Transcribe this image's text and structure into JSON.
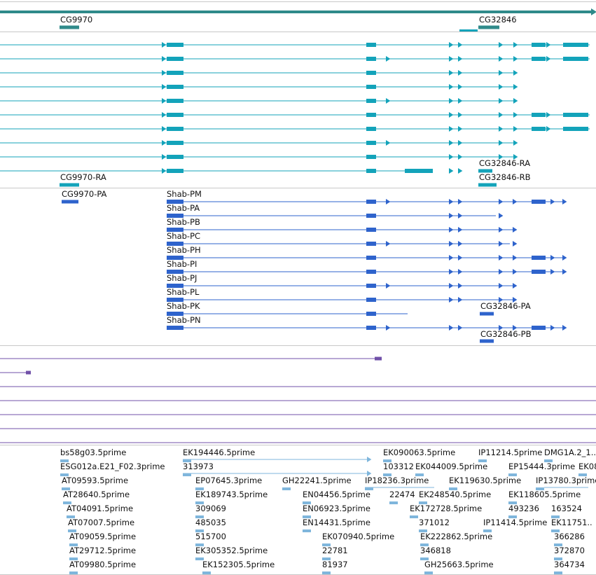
{
  "genes": {
    "labels": [
      "CG9970",
      "CG32846"
    ]
  },
  "mrna": {
    "labels": [
      "CG9970-RA",
      "CG32846-RA",
      "CG32846-RB"
    ]
  },
  "proteins": {
    "labels": [
      "CG9970-PA",
      "Shab-PM",
      "Shab-PA",
      "Shab-PB",
      "Shab-PC",
      "Shab-PH",
      "Shab-PI",
      "Shab-PJ",
      "Shab-PL",
      "Shab-PK",
      "CG32846-PA",
      "Shab-PN",
      "CG32846-PB"
    ]
  },
  "ests": {
    "labels": [
      "bs58g03.5prime",
      "EK194446.5prime",
      "EK090063.5prime",
      "IP11214.5prime",
      "DMG1A.2_1..",
      "ESG012a.E21_F02.3prime",
      "313973",
      "103312",
      "EK044009.5prime",
      "EP15444.3prime",
      "EK08",
      "AT09593.5prime",
      "EP07645.3prime",
      "GH22241.5prime",
      "IP18236.3prime",
      "EK119630.5prime",
      "IP13780.3prime",
      "AT28640.5prime",
      "EK189743.5prime",
      "EN04456.5prime",
      "22474",
      "EK248540.5prime",
      "EK118605.5prime",
      "AT04091.5prime",
      "309069",
      "EN06923.5prime",
      "EK172728.5prime",
      "493236",
      "163524",
      "AT07007.5prime",
      "485035",
      "EN14431.5prime",
      "371012",
      "IP11414.5prime",
      "EK11751..",
      "AT09059.5prime",
      "515700",
      "EK070940.5prime",
      "EK222862.5prime",
      "366286",
      "AT29712.5prime",
      "EK305352.5prime",
      "22781",
      "346818",
      "372870",
      "AT09980.5prime",
      "EK152305.5prime",
      "81937",
      "GH25663.5prime",
      "364734"
    ]
  },
  "colors": {
    "gene": "#2f8a8a",
    "mrna": "#13a3ba",
    "protein": "#2e63cc",
    "other": "#7050a8",
    "est": "#7fb6dc",
    "separator": "#c8c8c8"
  }
}
